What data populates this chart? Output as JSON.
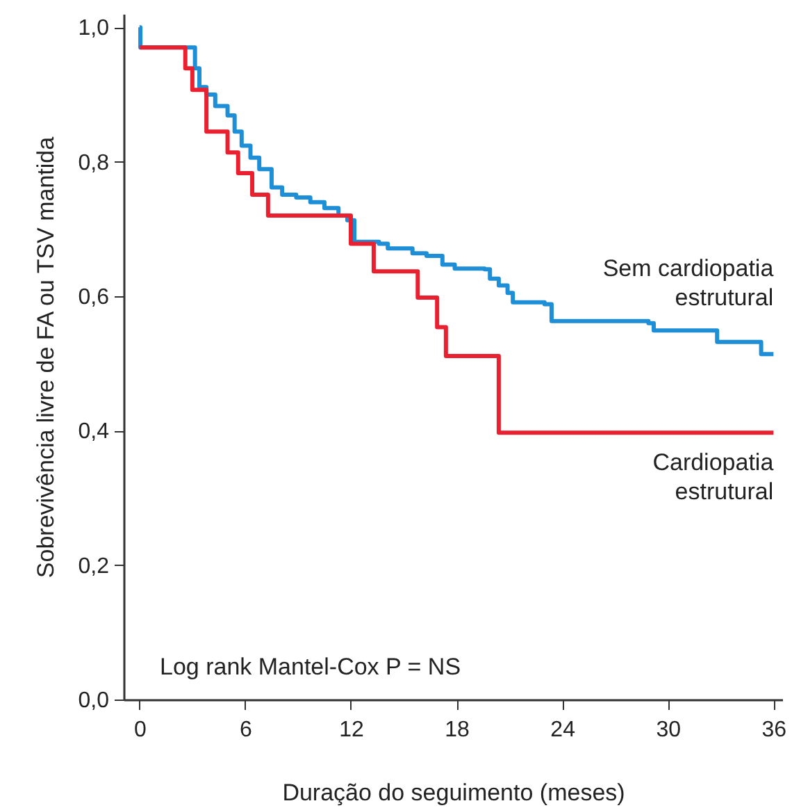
{
  "chart_data": {
    "type": "step",
    "xlabel": "Duração do seguimento (meses)",
    "ylabel": "Sobrevivência livre de FA ou TSV mantida",
    "xlim": [
      -0.9,
      36.5
    ],
    "ylim": [
      0,
      1.02
    ],
    "xticks": [
      0,
      6,
      12,
      18,
      24,
      30,
      36
    ],
    "yticks": [
      {
        "value": 0,
        "label": "0,0"
      },
      {
        "value": 0.2,
        "label": "0,2"
      },
      {
        "value": 0.4,
        "label": "0,4"
      },
      {
        "value": 0.6,
        "label": "0,6"
      },
      {
        "value": 0.8,
        "label": "0,8"
      },
      {
        "value": 1,
        "label": "1,0"
      }
    ],
    "grid": false,
    "marker": "none",
    "line_style": "solid",
    "annotations": [
      "Log rank Mantel-Cox P = NS"
    ],
    "series": [
      {
        "name": "Sem cardiopatia estrutural",
        "color": "#1e8fd6",
        "x": [
          0,
          0.05,
          2.9,
          3.15,
          3.4,
          3.8,
          4.3,
          5.0,
          5.4,
          5.8,
          6.3,
          6.8,
          7.5,
          8.1,
          8.9,
          9.7,
          10.5,
          11.3,
          11.8,
          12.2,
          13.6,
          14.1,
          15.5,
          16.3,
          17.2,
          17.9,
          19.6,
          19.9,
          20.4,
          20.9,
          21.2,
          23.0,
          23.4,
          28.9,
          29.2,
          32.8,
          35.3,
          36.0
        ],
        "values": [
          1.0,
          0.97,
          0.97,
          0.939,
          0.911,
          0.9,
          0.883,
          0.869,
          0.845,
          0.824,
          0.806,
          0.789,
          0.762,
          0.751,
          0.747,
          0.74,
          0.731,
          0.72,
          0.713,
          0.681,
          0.678,
          0.671,
          0.664,
          0.66,
          0.647,
          0.641,
          0.64,
          0.626,
          0.616,
          0.605,
          0.591,
          0.588,
          0.563,
          0.56,
          0.549,
          0.532,
          0.514,
          0.514
        ]
      },
      {
        "name": "Cardiopatia estrutural",
        "color": "#e8202f",
        "x": [
          0,
          2.6,
          3.0,
          3.8,
          5.0,
          5.6,
          6.4,
          7.3,
          12.0,
          13.3,
          15.8,
          16.9,
          17.4,
          20.4,
          36.0
        ],
        "values": [
          0.97,
          0.939,
          0.907,
          0.845,
          0.814,
          0.783,
          0.751,
          0.72,
          0.678,
          0.637,
          0.598,
          0.554,
          0.511,
          0.397,
          0.397
        ]
      }
    ]
  }
}
